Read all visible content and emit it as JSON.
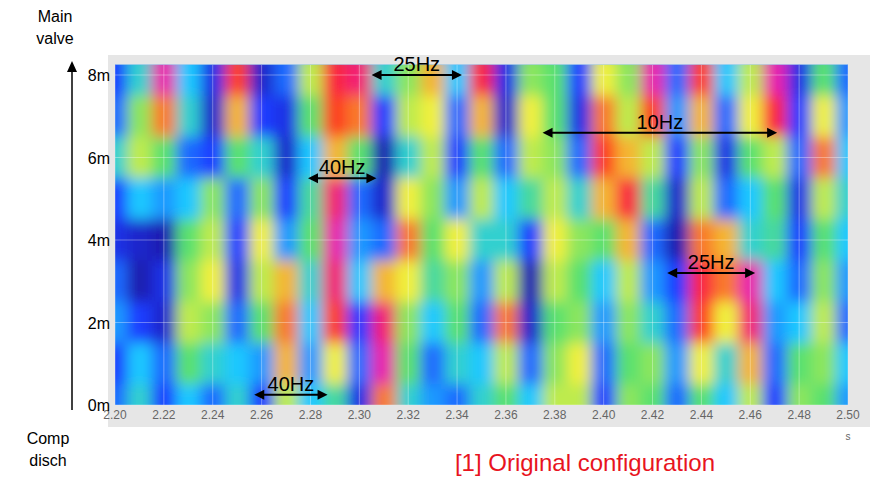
{
  "chart_data": {
    "type": "heatmap",
    "title": "[1] Original configuration",
    "xlabel": "s",
    "ylabel_top": "Main valve",
    "ylabel_bottom": "Comp disch",
    "xlim": [
      2.2,
      2.5
    ],
    "ylim": [
      0,
      8.25
    ],
    "xticks": [
      {
        "value": 2.2,
        "label": "2.20"
      },
      2.22,
      2.24,
      2.26,
      2.28,
      {
        "value": 2.3,
        "label": "2.30"
      },
      2.32,
      2.34,
      2.36,
      2.38,
      {
        "value": 2.4,
        "label": "2.40"
      },
      2.42,
      2.44,
      2.46,
      2.48,
      {
        "value": 2.5,
        "label": "2.50"
      }
    ],
    "yticks": [
      {
        "value": 0,
        "label": "0m"
      },
      {
        "value": 2,
        "label": "2m"
      },
      {
        "value": 4,
        "label": "4m"
      },
      {
        "value": 6,
        "label": "6m"
      },
      {
        "value": 8,
        "label": "8m"
      }
    ],
    "grid": true,
    "color_range": [
      -1,
      1
    ],
    "x": [
      2.2,
      2.21,
      2.22,
      2.23,
      2.24,
      2.25,
      2.26,
      2.27,
      2.28,
      2.29,
      2.3,
      2.31,
      2.32,
      2.33,
      2.34,
      2.35,
      2.36,
      2.37,
      2.38,
      2.39,
      2.4,
      2.41,
      2.42,
      2.43,
      2.44,
      2.45,
      2.46,
      2.47,
      2.48,
      2.49,
      2.5
    ],
    "y": [
      8,
      7,
      6,
      5,
      4,
      3,
      2,
      1,
      0
    ],
    "cells": [
      [
        -0.6,
        -0.2,
        0.9,
        -0.3,
        -0.7,
        0.6,
        -0.8,
        -0.5,
        0.2,
        0.7,
        0.8,
        -0.2,
        0.1,
        0.4,
        -0.3,
        0.7,
        -0.7,
        0.1,
        0.0,
        -0.6,
        0.3,
        0.1,
        0.9,
        -0.5,
        0.6,
        -0.3,
        0.2,
        0.9,
        -0.7,
        0.0,
        -0.5
      ],
      [
        -0.5,
        0.1,
        0.5,
        -0.2,
        -0.8,
        0.4,
        -0.6,
        -0.7,
        0.0,
        0.6,
        0.5,
        -0.6,
        0.2,
        0.3,
        -0.5,
        0.4,
        -0.8,
        0.3,
        0.0,
        -0.7,
        0.5,
        0.2,
        0.6,
        -0.4,
        0.4,
        -0.5,
        0.3,
        0.7,
        -0.6,
        0.3,
        -0.4
      ],
      [
        -0.2,
        0.2,
        0.0,
        -0.5,
        -0.6,
        0.0,
        -0.2,
        -0.8,
        -0.3,
        0.4,
        0.0,
        -0.9,
        -0.2,
        0.2,
        -0.6,
        0.0,
        -0.5,
        0.2,
        0.1,
        -0.5,
        0.6,
        0.4,
        0.2,
        -0.6,
        0.1,
        -0.7,
        0.0,
        0.2,
        -0.5,
        0.5,
        -0.3
      ],
      [
        -0.6,
        -0.3,
        -0.4,
        -0.3,
        0.1,
        -0.5,
        0.1,
        -0.6,
        -0.1,
        0.8,
        -0.5,
        -0.8,
        0.3,
        0.1,
        -0.4,
        0.2,
        -0.3,
        -0.1,
        0.2,
        -0.2,
        0.4,
        0.7,
        -0.1,
        -0.8,
        0.2,
        -0.5,
        -0.3,
        0.0,
        -0.7,
        0.2,
        -0.2
      ],
      [
        -0.7,
        -0.8,
        -0.9,
        0.0,
        0.2,
        -0.6,
        0.3,
        -0.4,
        0.0,
        0.9,
        -0.4,
        -0.5,
        0.5,
        0.0,
        0.3,
        -0.2,
        -0.2,
        -0.6,
        0.3,
        0.1,
        0.0,
        0.4,
        -0.5,
        -0.9,
        0.5,
        0.4,
        -0.2,
        -0.1,
        -0.6,
        0.0,
        -0.3
      ],
      [
        -0.5,
        -0.9,
        -0.7,
        0.1,
        0.3,
        -0.7,
        0.2,
        0.4,
        -0.2,
        0.8,
        -0.3,
        0.4,
        0.3,
        -0.1,
        0.1,
        -0.4,
        0.2,
        -0.9,
        0.2,
        0.0,
        -0.3,
        0.2,
        -0.4,
        -0.6,
        0.7,
        0.5,
        0.9,
        -0.3,
        -0.5,
        0.1,
        -0.4
      ],
      [
        -0.4,
        -0.6,
        -0.8,
        0.2,
        0.1,
        -0.5,
        0.0,
        0.5,
        -0.3,
        0.6,
        -0.6,
        0.8,
        0.1,
        -0.3,
        0.0,
        -0.5,
        0.5,
        -0.8,
        0.0,
        0.1,
        -0.4,
        0.1,
        -0.2,
        -0.5,
        0.6,
        0.3,
        0.8,
        -0.4,
        -0.3,
        0.2,
        -0.5
      ],
      [
        -0.6,
        -0.3,
        -0.5,
        0.0,
        -0.2,
        -0.3,
        -0.4,
        0.4,
        -0.4,
        0.3,
        -0.5,
        0.9,
        0.0,
        -0.5,
        -0.2,
        -0.3,
        0.2,
        -0.5,
        0.1,
        0.3,
        -0.5,
        0.0,
        0.1,
        -0.4,
        0.3,
        -0.2,
        0.4,
        -0.5,
        0.0,
        0.1,
        -0.3
      ],
      [
        -0.5,
        -0.2,
        -0.6,
        -0.3,
        -0.5,
        -0.2,
        -0.6,
        0.2,
        -0.3,
        -0.1,
        -0.7,
        0.5,
        -0.2,
        -0.4,
        -0.5,
        -0.2,
        0.0,
        -0.3,
        0.2,
        0.2,
        -0.6,
        0.1,
        0.0,
        -0.5,
        0.0,
        -0.3,
        0.2,
        -0.6,
        0.1,
        0.0,
        -0.4
      ]
    ],
    "annotations": [
      {
        "text": "25Hz",
        "x": [
          2.305,
          2.342
        ],
        "y": 8.0
      },
      {
        "text": "40Hz",
        "x": [
          2.279,
          2.307
        ],
        "y": 5.5
      },
      {
        "text": "10Hz",
        "x": [
          2.375,
          2.471
        ],
        "y": 6.6
      },
      {
        "text": "25Hz",
        "x": [
          2.426,
          2.462
        ],
        "y": 3.2
      },
      {
        "text": "40Hz",
        "x": [
          2.257,
          2.287
        ],
        "y": 0.25
      }
    ]
  }
}
